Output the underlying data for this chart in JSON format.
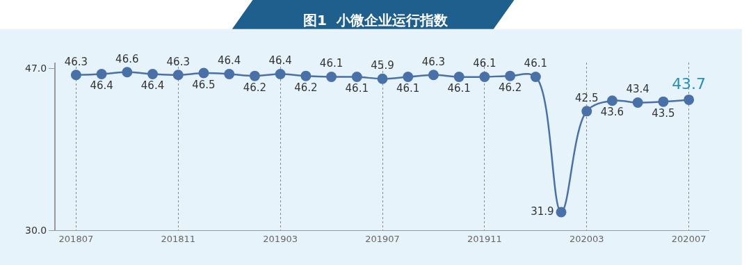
{
  "chart_data": {
    "type": "line",
    "title": "图1  小微企业运行指数",
    "categories": [
      "201807",
      null,
      null,
      null,
      "201811",
      null,
      null,
      null,
      "201903",
      null,
      null,
      null,
      "201907",
      null,
      null,
      null,
      "201911",
      null,
      null,
      null,
      "202003",
      null,
      null,
      null,
      "202007"
    ],
    "series": [
      {
        "color": "#4a70a8",
        "values": [
          46.3,
          46.4,
          46.6,
          46.4,
          46.3,
          46.5,
          46.4,
          46.2,
          46.4,
          46.2,
          46.1,
          46.1,
          45.9,
          46.1,
          46.3,
          46.1,
          46.1,
          46.2,
          46.1,
          31.9,
          42.5,
          43.6,
          43.4,
          43.5,
          43.7
        ]
      }
    ],
    "ylim": [
      30,
      47.6
    ],
    "yticks": [
      {
        "value": 30,
        "label": "30.0"
      },
      {
        "value": 47,
        "label": "47.0"
      }
    ],
    "grid": "x",
    "marker": "circle",
    "line_style": "solid",
    "data_labels": true
  }
}
